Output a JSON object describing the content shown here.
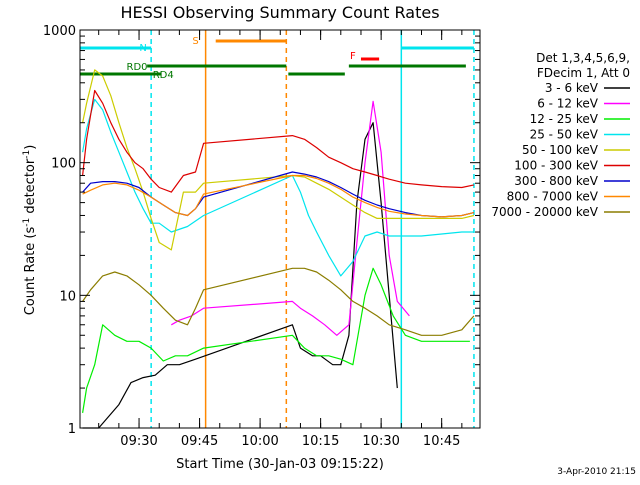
{
  "chart_data": {
    "type": "line",
    "title": "HESSI Observing Summary Count Rates",
    "xlabel": "Start Time (30-Jan-03 09:15:22)",
    "ylabel_main": "Count Rate (s",
    "ylabel_sup1": "-1",
    "ylabel_mid": " detector",
    "ylabel_sup2": "-1",
    "ylabel_end": ")",
    "x_range": [
      "09:15:22",
      "10:54:30"
    ],
    "y_scale": "log",
    "ylim": [
      1,
      1000
    ],
    "x_ticks": [
      "09:30",
      "09:45",
      "10:00",
      "10:15",
      "10:30",
      "10:45"
    ],
    "y_ticks": [
      "1",
      "10",
      "100",
      "1000"
    ],
    "legend": {
      "header": [
        "Det 1,3,4,5,6,9,",
        "FDecim 1, Att 0"
      ],
      "entries": [
        {
          "label": "3 - 6 keV",
          "color": "#000000"
        },
        {
          "label": "6 - 12 keV",
          "color": "#ff00ff"
        },
        {
          "label": "12 - 25 keV",
          "color": "#00ee00"
        },
        {
          "label": "25 - 50 keV",
          "color": "#00e5ee"
        },
        {
          "label": "50 - 100 keV",
          "color": "#cccc00"
        },
        {
          "label": "100 - 300 keV",
          "color": "#dd0000"
        },
        {
          "label": "300 - 800 keV",
          "color": "#0000cc"
        },
        {
          "label": "800 - 7000 keV",
          "color": "#ff8800"
        },
        {
          "label": "7000 - 20000 keV",
          "color": "#8b7d00"
        }
      ]
    },
    "flag_bars": [
      {
        "label": "N",
        "color": "#00e5ee",
        "segments": [
          [
            "09:15:22",
            "09:33:00"
          ],
          [
            "10:35:00",
            "10:53:00"
          ]
        ]
      },
      {
        "label": "S",
        "color": "#ff8800",
        "segments": [
          [
            "09:49:00",
            "10:06:30"
          ]
        ]
      },
      {
        "label": "F",
        "color": "#ff0000",
        "segments": [
          [
            "10:25:00",
            "10:29:30"
          ]
        ]
      },
      {
        "label": "RD0",
        "color": "#007700",
        "segments": [
          [
            "09:32:00",
            "10:06:30"
          ],
          [
            "10:22:00",
            "10:51:00"
          ]
        ]
      },
      {
        "label": "RD4",
        "color": "#007700",
        "segments": [
          [
            "09:15:22",
            "09:35:30"
          ],
          [
            "10:07:00",
            "10:21:00"
          ]
        ]
      }
    ],
    "markers": [
      {
        "time": "09:33:00",
        "color": "#00e5ee",
        "style": "dashed"
      },
      {
        "time": "09:46:30",
        "color": "#ff8800",
        "style": "solid"
      },
      {
        "time": "10:06:30",
        "color": "#ff8800",
        "style": "dashed"
      },
      {
        "time": "10:35:00",
        "color": "#00e5ee",
        "style": "solid"
      },
      {
        "time": "10:53:00",
        "color": "#00e5ee",
        "style": "dashed"
      }
    ],
    "series": [
      {
        "name": "3 - 6 keV",
        "color": "#000000",
        "x": [
          "09:16",
          "09:20",
          "09:25",
          "09:28",
          "09:31",
          "09:34",
          "09:37",
          "09:40",
          "09:44",
          "10:08",
          "10:10",
          "10:13",
          "10:15",
          "10:18",
          "10:20",
          "10:22",
          "10:24",
          "10:26",
          "10:28",
          "10:30",
          "10:32",
          "10:34"
        ],
        "y": [
          1,
          1,
          1.5,
          2.2,
          2.4,
          2.5,
          3,
          3,
          3.3,
          6,
          4,
          3.5,
          3.5,
          3,
          3,
          5,
          50,
          150,
          200,
          50,
          10,
          2
        ]
      },
      {
        "name": "6 - 12 keV",
        "color": "#ff00ff",
        "x": [
          "09:38",
          "09:40",
          "09:43",
          "09:46",
          "10:08",
          "10:10",
          "10:13",
          "10:16",
          "10:19",
          "10:22",
          "10:24",
          "10:26",
          "10:28",
          "10:30",
          "10:32",
          "10:34",
          "10:37"
        ],
        "y": [
          6,
          6.5,
          7,
          8,
          9,
          8,
          7,
          6,
          5,
          6,
          25,
          100,
          290,
          120,
          20,
          9,
          7
        ]
      },
      {
        "name": "12 - 25 keV",
        "color": "#00ee00",
        "x": [
          "09:16",
          "09:17",
          "09:19",
          "09:21",
          "09:24",
          "09:27",
          "09:30",
          "09:33",
          "09:36",
          "09:39",
          "09:42",
          "09:46",
          "10:08",
          "10:11",
          "10:14",
          "10:17",
          "10:20",
          "10:23",
          "10:26",
          "10:28",
          "10:30",
          "10:33",
          "10:36",
          "10:40",
          "10:44",
          "10:48",
          "10:52"
        ],
        "y": [
          1.3,
          2,
          3,
          6,
          5,
          4.5,
          4.5,
          4,
          3.2,
          3.5,
          3.5,
          4,
          5,
          4,
          3.5,
          3.5,
          3.3,
          3,
          10,
          16,
          12,
          7,
          5,
          4.5,
          4.5,
          4.5,
          4.5
        ]
      },
      {
        "name": "25 - 50 keV",
        "color": "#00e5ee",
        "x": [
          "09:16",
          "09:17",
          "09:19",
          "09:21",
          "09:23",
          "09:25",
          "09:27",
          "09:29",
          "09:31",
          "09:33",
          "09:35",
          "09:38",
          "09:42",
          "09:46",
          "10:08",
          "10:10",
          "10:12",
          "10:14",
          "10:17",
          "10:20",
          "10:23",
          "10:26",
          "10:29",
          "10:32",
          "10:35",
          "10:40",
          "10:45",
          "10:50",
          "10:53"
        ],
        "y": [
          120,
          180,
          300,
          250,
          170,
          120,
          85,
          60,
          45,
          35,
          35,
          30,
          33,
          40,
          80,
          60,
          40,
          30,
          20,
          14,
          18,
          28,
          30,
          28,
          28,
          28,
          29,
          30,
          30
        ]
      },
      {
        "name": "50 - 100 keV",
        "color": "#cccc00",
        "x": [
          "09:16",
          "09:17",
          "09:19",
          "09:21",
          "09:23",
          "09:25",
          "09:27",
          "09:29",
          "09:31",
          "09:33",
          "09:35",
          "09:38",
          "09:41",
          "09:44",
          "09:46",
          "10:08",
          "10:11",
          "10:14",
          "10:17",
          "10:20",
          "10:23",
          "10:26",
          "10:29",
          "10:32",
          "10:36",
          "10:40",
          "10:45",
          "10:50",
          "10:53"
        ],
        "y": [
          200,
          280,
          500,
          450,
          320,
          200,
          130,
          90,
          60,
          38,
          25,
          22,
          60,
          60,
          70,
          80,
          78,
          70,
          63,
          55,
          48,
          42,
          38,
          38,
          38,
          38,
          38,
          38,
          40
        ]
      },
      {
        "name": "100 - 300 keV",
        "color": "#dd0000",
        "x": [
          "09:16",
          "09:17",
          "09:19",
          "09:21",
          "09:23",
          "09:25",
          "09:27",
          "09:29",
          "09:31",
          "09:33",
          "09:35",
          "09:38",
          "09:41",
          "09:44",
          "09:46",
          "10:08",
          "10:11",
          "10:14",
          "10:17",
          "10:20",
          "10:23",
          "10:26",
          "10:29",
          "10:32",
          "10:36",
          "10:40",
          "10:45",
          "10:50",
          "10:53"
        ],
        "y": [
          80,
          150,
          350,
          280,
          200,
          150,
          120,
          100,
          90,
          75,
          65,
          60,
          80,
          85,
          140,
          160,
          150,
          130,
          110,
          100,
          90,
          85,
          80,
          75,
          70,
          68,
          66,
          65,
          68
        ]
      },
      {
        "name": "300 - 800 keV",
        "color": "#0000cc",
        "x": [
          "09:16",
          "09:18",
          "09:21",
          "09:24",
          "09:27",
          "09:30",
          "09:33",
          "09:36",
          "09:39",
          "09:42",
          "09:44",
          "09:46",
          "10:08",
          "10:11",
          "10:14",
          "10:17",
          "10:20",
          "10:23",
          "10:26",
          "10:29",
          "10:32",
          "10:36",
          "10:40",
          "10:45",
          "10:50",
          "10:53"
        ],
        "y": [
          60,
          70,
          72,
          72,
          70,
          65,
          55,
          48,
          42,
          40,
          45,
          55,
          85,
          82,
          78,
          72,
          65,
          58,
          52,
          48,
          45,
          42,
          40,
          39,
          40,
          42
        ]
      },
      {
        "name": "800 - 7000 keV",
        "color": "#ff8800",
        "x": [
          "09:16",
          "09:18",
          "09:21",
          "09:24",
          "09:27",
          "09:30",
          "09:33",
          "09:36",
          "09:39",
          "09:42",
          "09:44",
          "09:46",
          "10:08",
          "10:11",
          "10:14",
          "10:17",
          "10:20",
          "10:23",
          "10:26",
          "10:29",
          "10:32",
          "10:36",
          "10:40",
          "10:45",
          "10:50",
          "10:53"
        ],
        "y": [
          58,
          62,
          68,
          70,
          68,
          62,
          55,
          48,
          42,
          40,
          45,
          58,
          80,
          80,
          76,
          70,
          63,
          55,
          50,
          46,
          43,
          41,
          40,
          39,
          40,
          42
        ]
      },
      {
        "name": "7000 - 20000 keV",
        "color": "#8b7d00",
        "x": [
          "09:16",
          "09:18",
          "09:21",
          "09:24",
          "09:27",
          "09:30",
          "09:33",
          "09:36",
          "09:39",
          "09:42",
          "09:44",
          "09:46",
          "10:08",
          "10:11",
          "10:14",
          "10:17",
          "10:20",
          "10:23",
          "10:26",
          "10:29",
          "10:32",
          "10:36",
          "10:40",
          "10:45",
          "10:50",
          "10:53"
        ],
        "y": [
          9,
          11,
          14,
          15,
          14,
          12,
          10,
          8,
          6.5,
          6,
          8,
          11,
          16,
          16,
          15,
          13,
          11,
          9,
          8,
          7,
          6,
          5.5,
          5,
          5,
          5.5,
          7
        ]
      }
    ]
  },
  "footer": {
    "date_stamp": "3-Apr-2010 21:15"
  }
}
